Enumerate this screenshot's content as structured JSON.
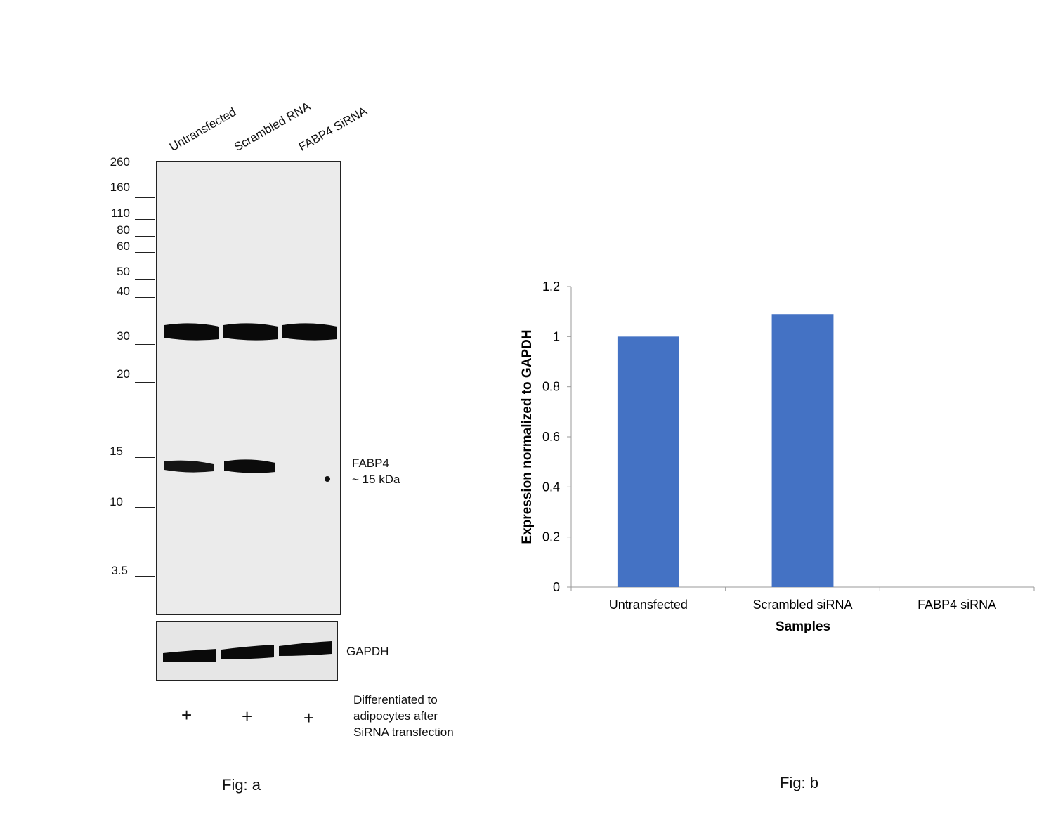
{
  "figure_a": {
    "lanes": [
      "Untransfected",
      "Scrambled RNA",
      "FABP4 SiRNA"
    ],
    "mw_markers": [
      "260",
      "160",
      "110",
      "80",
      "60",
      "50",
      "40",
      "30",
      "20",
      "15",
      "10",
      "3.5"
    ],
    "band_label_line1": "FABP4",
    "band_label_line2": "~ 15 kDa",
    "loading_control": "GAPDH",
    "treatment_marks": [
      "+",
      "+",
      "+"
    ],
    "treatment_line1": "Differentiated to",
    "treatment_line2": "adipocytes after",
    "treatment_line3": "SiRNA transfection",
    "caption": "Fig: a"
  },
  "figure_b": {
    "caption": "Fig: b"
  },
  "chart_data": {
    "type": "bar",
    "categories": [
      "Untransfected",
      "Scrambled siRNA",
      "FABP4 siRNA"
    ],
    "values": [
      1.0,
      1.09,
      0.0
    ],
    "xlabel": "Samples",
    "ylabel": "Expression normalized to GAPDH",
    "ylim": [
      0,
      1.2
    ],
    "yticks": [
      "0",
      "0.2",
      "0.4",
      "0.6",
      "0.8",
      "1",
      "1.2"
    ],
    "bar_color": "#4472c4",
    "grid": false,
    "legend": "none"
  }
}
